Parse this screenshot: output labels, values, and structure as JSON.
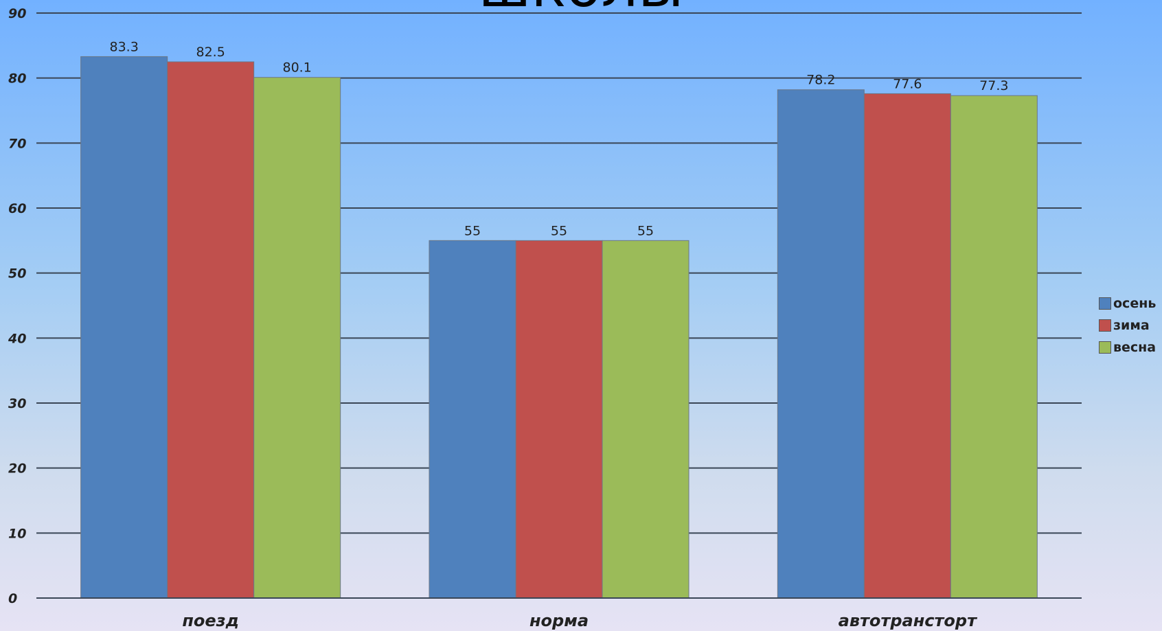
{
  "title": "школы",
  "chart_data": {
    "type": "bar",
    "categories": [
      "поезд",
      "норма",
      "автотранстopт"
    ],
    "series": [
      {
        "name": "осень",
        "color": "#4f81bd",
        "values": [
          83.3,
          55,
          78.2
        ],
        "labels": [
          "83.3",
          "55",
          "78.2"
        ]
      },
      {
        "name": "зима",
        "color": "#c0504d",
        "values": [
          82.5,
          55,
          77.6
        ],
        "labels": [
          "82.5",
          "55",
          "77.6"
        ]
      },
      {
        "name": "весна",
        "color": "#9bbb59",
        "values": [
          80.1,
          55,
          77.3
        ],
        "labels": [
          "80.1",
          "55",
          "77.3"
        ]
      }
    ],
    "ylim": [
      0,
      90
    ],
    "yticks": [
      "0",
      "10",
      "20",
      "30",
      "40",
      "50",
      "60",
      "70",
      "80",
      "90"
    ],
    "grid": true,
    "legend_position": "right"
  }
}
